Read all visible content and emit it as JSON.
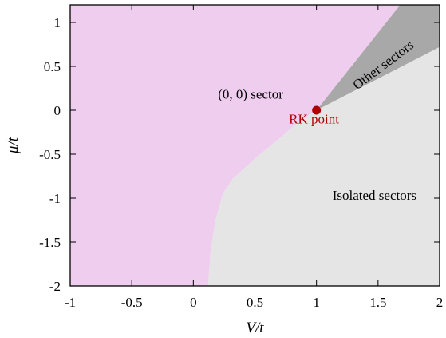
{
  "chart_data": {
    "type": "area",
    "title": "",
    "xlabel": "V/t",
    "ylabel": "μ/t",
    "xlim": [
      -1,
      2
    ],
    "ylim": [
      -2,
      1.2
    ],
    "x_ticks": [
      -1,
      -0.5,
      0,
      0.5,
      1,
      1.5,
      2
    ],
    "x_tick_labels": [
      "-1",
      "-0.5",
      "0",
      "0.5",
      "1",
      "1.5",
      "2"
    ],
    "y_ticks": [
      -2,
      -1.5,
      -1,
      -0.5,
      0,
      0.5,
      1
    ],
    "y_tick_labels": [
      "-2",
      "-1.5",
      "-1",
      "-0.5",
      "0",
      "0.5",
      "1"
    ],
    "grid": false,
    "legend": "none",
    "regions": [
      {
        "label": "(0, 0) sector",
        "color": "#efcdef",
        "boundary": [
          [
            -1,
            -2
          ],
          [
            0.12,
            -2
          ],
          [
            0.14,
            -1.6
          ],
          [
            0.18,
            -1.25
          ],
          [
            0.24,
            -0.95
          ],
          [
            0.32,
            -0.78
          ],
          [
            0.5,
            -0.55
          ],
          [
            0.7,
            -0.32
          ],
          [
            0.85,
            -0.14
          ],
          [
            1.0,
            0.0
          ],
          [
            1.68,
            1.2
          ],
          [
            -1,
            1.2
          ]
        ],
        "label_pos": [
          0.2,
          0.13
        ]
      },
      {
        "label": "Isolated sectors",
        "color": "#e5e5e5",
        "boundary": [
          [
            0.12,
            -2
          ],
          [
            2,
            -2
          ],
          [
            2,
            0.72
          ],
          [
            1.0,
            0.0
          ],
          [
            0.85,
            -0.14
          ],
          [
            0.7,
            -0.32
          ],
          [
            0.5,
            -0.55
          ],
          [
            0.32,
            -0.78
          ],
          [
            0.24,
            -0.95
          ],
          [
            0.18,
            -1.25
          ],
          [
            0.14,
            -1.6
          ]
        ],
        "label_pos": [
          1.13,
          -1.02
        ]
      },
      {
        "label": "Other sectors",
        "color": "#a8a8a8",
        "boundary": [
          [
            1.0,
            0.0
          ],
          [
            1.68,
            1.2
          ],
          [
            2,
            1.2
          ],
          [
            2,
            0.72
          ]
        ],
        "label_pos": [
          1.33,
          0.23
        ],
        "label_rotation_deg": -37
      }
    ],
    "points": [
      {
        "label": "RK point",
        "x": 1,
        "y": 0,
        "color": "#b00000",
        "label_pos": [
          0.98,
          -0.15
        ]
      }
    ]
  }
}
